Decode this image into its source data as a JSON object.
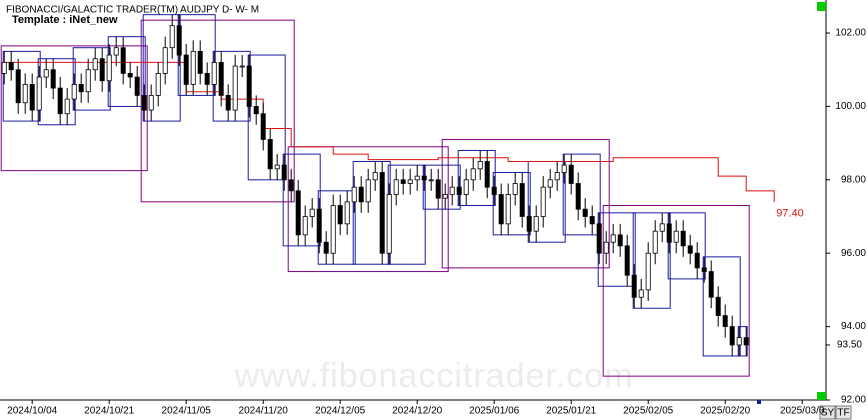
{
  "chart_data": {
    "type": "candlestick",
    "title": "FIBONACCI/GALACTIC TRADER(TM)",
    "symbol": "AUDJPY D- W- M",
    "subtitle": "Template : iNet_new",
    "watermark": "www.fibonaccitrader.com",
    "buttons": [
      "SY",
      "TF"
    ],
    "ylim": [
      92,
      102.9
    ],
    "yticks": [
      {
        "value": 92,
        "label": "92.00"
      },
      {
        "value": 94,
        "label": "94.00"
      },
      {
        "value": 96,
        "label": "96.00"
      },
      {
        "value": 98,
        "label": "98.00"
      },
      {
        "value": 100,
        "label": "100.00"
      },
      {
        "value": 102,
        "label": "102.00"
      }
    ],
    "xlim": [
      -0.6,
      117.4
    ],
    "xticks": [
      {
        "value": 4,
        "label": "2024/10/04"
      },
      {
        "value": 15,
        "label": "2024/10/21"
      },
      {
        "value": 26,
        "label": "2024/11/05"
      },
      {
        "value": 37,
        "label": "2024/11/20"
      },
      {
        "value": 48,
        "label": "2024/12/05"
      },
      {
        "value": 59,
        "label": "2024/12/20"
      },
      {
        "value": 70,
        "label": "2025/01/06"
      },
      {
        "value": 81,
        "label": "2025/01/21"
      },
      {
        "value": 92,
        "label": "2025/02/05"
      },
      {
        "value": 103,
        "label": "2025/02/20"
      },
      {
        "value": 114,
        "label": "2025/03/0"
      }
    ],
    "up_color": "#ffffff",
    "down_color": "#000000",
    "open": [
      100.9,
      101.2,
      101.0,
      100.1,
      100.6,
      99.9,
      100.8,
      101.0,
      100.5,
      99.8,
      100.2,
      100.6,
      100.4,
      101.0,
      101.3,
      100.7,
      101.4,
      101.6,
      100.9,
      100.8,
      100.3,
      99.9,
      100.3,
      100.9,
      101.6,
      102.2,
      101.4,
      100.6,
      101.5,
      100.9,
      100.6,
      101.2,
      100.3,
      99.9,
      101.1,
      101.1,
      100.0,
      99.8,
      99.1,
      98.3,
      98.4,
      98.0,
      97.7,
      96.5,
      97.0,
      97.2,
      96.3,
      96.0,
      97.3,
      96.8,
      97.4,
      97.8,
      97.4,
      98.0,
      98.2,
      96.0,
      97.6,
      98.0,
      97.9,
      98.0,
      98.1,
      98.0,
      98.0,
      97.5,
      97.6,
      97.8,
      97.6,
      98.0,
      98.3,
      98.5,
      97.8,
      97.6,
      96.8,
      97.6,
      97.9,
      97.0,
      96.6,
      97.0,
      97.8,
      98.0,
      98.2,
      98.4,
      97.9,
      97.2,
      97.0,
      96.8,
      96.0,
      96.3,
      96.5,
      96.2,
      95.4,
      94.8,
      95.0,
      96.0,
      96.6,
      96.8,
      96.3,
      96.6,
      96.2,
      96.0,
      95.6,
      95.5,
      94.8,
      94.3,
      94.0,
      93.5,
      93.7
    ],
    "high": [
      101.5,
      101.5,
      101.3,
      100.9,
      100.9,
      101.1,
      101.3,
      101.3,
      100.8,
      100.5,
      100.9,
      100.9,
      101.3,
      101.6,
      101.6,
      101.7,
      101.9,
      101.9,
      101.2,
      101.1,
      100.6,
      100.6,
      101.2,
      101.9,
      102.5,
      102.5,
      101.7,
      101.8,
      101.8,
      101.2,
      101.5,
      101.5,
      100.6,
      101.4,
      101.4,
      101.4,
      100.3,
      100.1,
      99.4,
      98.7,
      98.7,
      98.3,
      98.0,
      97.3,
      97.5,
      97.5,
      96.6,
      97.6,
      97.6,
      97.7,
      98.1,
      98.1,
      98.3,
      98.5,
      98.5,
      97.9,
      98.3,
      98.3,
      98.3,
      98.4,
      98.4,
      98.3,
      98.3,
      97.9,
      98.1,
      98.1,
      98.3,
      98.6,
      98.8,
      98.8,
      98.1,
      97.9,
      97.9,
      98.2,
      98.2,
      97.3,
      97.3,
      98.1,
      98.3,
      98.5,
      98.7,
      98.7,
      98.2,
      97.5,
      97.3,
      97.1,
      96.6,
      96.8,
      96.8,
      96.5,
      95.7,
      95.3,
      96.3,
      96.9,
      97.1,
      97.1,
      96.9,
      96.9,
      96.5,
      96.3,
      95.9,
      95.8,
      95.1,
      94.6,
      94.3,
      94.0,
      94.0
    ],
    "low": [
      100.6,
      100.7,
      99.8,
      99.8,
      99.6,
      99.6,
      100.5,
      100.2,
      99.5,
      99.5,
      99.9,
      100.1,
      100.1,
      100.7,
      100.4,
      100.4,
      101.1,
      100.6,
      100.5,
      100.0,
      99.6,
      99.6,
      100.0,
      100.6,
      101.3,
      101.1,
      100.3,
      100.3,
      100.6,
      100.3,
      100.3,
      100.0,
      99.6,
      99.6,
      100.8,
      99.7,
      99.5,
      98.8,
      98.0,
      98.0,
      97.7,
      97.4,
      96.2,
      96.2,
      96.7,
      96.0,
      95.7,
      95.7,
      96.5,
      96.5,
      97.1,
      97.1,
      97.1,
      97.7,
      95.7,
      95.7,
      97.3,
      97.6,
      97.6,
      97.7,
      97.7,
      97.7,
      97.2,
      97.2,
      97.3,
      97.3,
      97.3,
      97.7,
      98.0,
      97.5,
      97.3,
      96.5,
      96.5,
      97.3,
      96.7,
      96.3,
      96.3,
      96.7,
      97.5,
      97.7,
      97.9,
      97.6,
      96.9,
      96.7,
      96.5,
      95.7,
      95.7,
      96.0,
      95.9,
      95.1,
      94.5,
      94.5,
      94.7,
      95.7,
      96.3,
      96.0,
      96.0,
      95.9,
      95.7,
      95.3,
      95.2,
      94.5,
      94.0,
      93.7,
      93.2,
      93.2,
      93.2
    ],
    "close": [
      101.2,
      101.0,
      100.1,
      100.6,
      99.9,
      100.8,
      101.0,
      100.5,
      99.8,
      100.2,
      100.6,
      100.4,
      101.0,
      101.3,
      100.7,
      101.4,
      101.6,
      100.9,
      100.8,
      100.3,
      99.9,
      100.3,
      100.9,
      101.6,
      102.2,
      101.4,
      100.6,
      101.5,
      100.9,
      100.6,
      101.2,
      100.3,
      99.9,
      101.1,
      101.1,
      100.0,
      99.8,
      99.1,
      98.3,
      98.4,
      98.0,
      97.7,
      96.5,
      97.0,
      97.2,
      96.3,
      96.0,
      97.3,
      96.8,
      97.4,
      97.8,
      97.4,
      98.0,
      98.2,
      96.0,
      97.6,
      98.0,
      97.9,
      98.0,
      98.1,
      98.0,
      98.0,
      97.5,
      97.6,
      97.8,
      97.6,
      98.0,
      98.3,
      98.5,
      97.8,
      97.6,
      96.8,
      97.6,
      97.9,
      97.0,
      96.6,
      97.0,
      97.8,
      98.0,
      98.2,
      98.4,
      97.9,
      97.2,
      97.0,
      96.8,
      96.0,
      96.3,
      96.5,
      96.2,
      95.4,
      94.8,
      95.0,
      96.0,
      96.6,
      96.8,
      96.3,
      96.6,
      96.2,
      96.0,
      95.6,
      95.5,
      94.8,
      94.3,
      94.0,
      93.5,
      93.7,
      93.5
    ],
    "last_price": {
      "value": 93.5,
      "label": "93.50"
    },
    "red_line": {
      "color": "#dd1111",
      "x": [
        0,
        20,
        26,
        31,
        37,
        41,
        47,
        52,
        62,
        72,
        82,
        87,
        98,
        102,
        106,
        110
      ],
      "values": [
        101.2,
        101.2,
        100.4,
        100.2,
        99.4,
        98.9,
        98.7,
        98.55,
        98.6,
        98.5,
        98.5,
        98.6,
        98.6,
        98.1,
        97.7,
        97.4
      ],
      "end_label": {
        "value": 97.4,
        "label": "97.40"
      }
    },
    "monthly_boxes": {
      "color": "#800080",
      "start": [
        0,
        20,
        41,
        63,
        86
      ],
      "end": [
        20,
        41,
        63,
        86,
        106
      ],
      "high": [
        101.65,
        102.35,
        98.9,
        99.1,
        97.3
      ],
      "low": [
        98.25,
        97.4,
        95.5,
        95.6,
        92.65
      ]
    },
    "weekly_boxes": {
      "color": "#1a1aa0",
      "start": [
        0,
        5,
        10,
        15,
        20,
        25,
        30,
        35,
        40,
        45,
        50,
        55,
        60,
        65,
        70,
        75,
        80,
        85,
        90,
        95,
        100,
        105
      ],
      "end": [
        5,
        10,
        15,
        20,
        25,
        30,
        35,
        40,
        45,
        50,
        55,
        60,
        65,
        70,
        75,
        80,
        85,
        90,
        95,
        100,
        105,
        106
      ],
      "high": [
        101.5,
        101.3,
        101.6,
        101.9,
        102.5,
        102.5,
        101.5,
        101.4,
        98.7,
        97.7,
        98.5,
        98.4,
        98.4,
        98.8,
        98.2,
        98.5,
        98.7,
        97.1,
        97.1,
        97.1,
        95.9,
        94.0
      ],
      "low": [
        99.6,
        99.5,
        99.9,
        100.0,
        99.6,
        100.3,
        99.6,
        98.0,
        96.2,
        95.7,
        95.7,
        95.7,
        97.2,
        97.3,
        96.5,
        96.3,
        96.5,
        95.1,
        94.5,
        95.3,
        93.2,
        93.2
      ]
    }
  }
}
